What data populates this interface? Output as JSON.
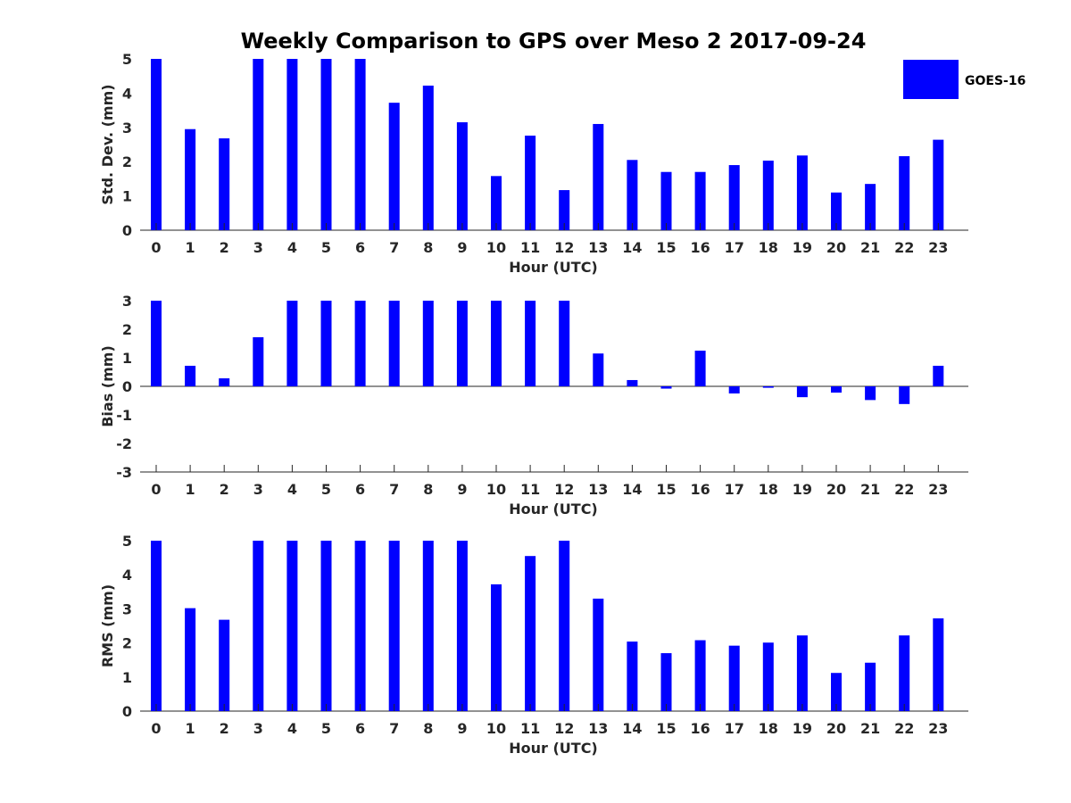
{
  "title": "Weekly Comparison to GPS over Meso 2 2017-09-24",
  "legend": {
    "label": "GOES-16",
    "color": "#0000ff"
  },
  "bar_color": "#0000ff",
  "chart_data": [
    {
      "type": "bar",
      "xlabel": "Hour (UTC)",
      "ylabel": "Std. Dev. (mm)",
      "ylim": [
        0,
        5
      ],
      "yticks": [
        0,
        1,
        2,
        3,
        4,
        5
      ],
      "categories": [
        "0",
        "1",
        "2",
        "3",
        "4",
        "5",
        "6",
        "7",
        "8",
        "9",
        "10",
        "11",
        "12",
        "13",
        "14",
        "15",
        "16",
        "17",
        "18",
        "19",
        "20",
        "21",
        "22",
        "23"
      ],
      "values": [
        5,
        2.95,
        2.68,
        5,
        5,
        5,
        5,
        3.72,
        4.22,
        3.15,
        1.58,
        2.76,
        1.17,
        3.1,
        2.05,
        1.7,
        1.7,
        1.9,
        2.03,
        2.18,
        1.1,
        1.35,
        2.16,
        2.64
      ]
    },
    {
      "type": "bar",
      "xlabel": "Hour (UTC)",
      "ylabel": "Bias (mm)",
      "ylim": [
        -3,
        3
      ],
      "yticks": [
        -3,
        -2,
        -1,
        0,
        1,
        2,
        3
      ],
      "categories": [
        "0",
        "1",
        "2",
        "3",
        "4",
        "5",
        "6",
        "7",
        "8",
        "9",
        "10",
        "11",
        "12",
        "13",
        "14",
        "15",
        "16",
        "17",
        "18",
        "19",
        "20",
        "21",
        "22",
        "23"
      ],
      "values": [
        3,
        0.72,
        0.28,
        1.72,
        3,
        3,
        3,
        3,
        3,
        3,
        3,
        3,
        3,
        1.15,
        0.22,
        -0.08,
        1.25,
        -0.25,
        -0.05,
        -0.38,
        -0.22,
        -0.48,
        -0.62,
        0.72
      ]
    },
    {
      "type": "bar",
      "xlabel": "Hour (UTC)",
      "ylabel": "RMS (mm)",
      "ylim": [
        0,
        5
      ],
      "yticks": [
        0,
        1,
        2,
        3,
        4,
        5
      ],
      "categories": [
        "0",
        "1",
        "2",
        "3",
        "4",
        "5",
        "6",
        "7",
        "8",
        "9",
        "10",
        "11",
        "12",
        "13",
        "14",
        "15",
        "16",
        "17",
        "18",
        "19",
        "20",
        "21",
        "22",
        "23"
      ],
      "values": [
        5,
        3.02,
        2.68,
        5,
        5,
        5,
        5,
        5,
        5,
        5,
        3.72,
        4.55,
        5,
        3.3,
        2.04,
        1.7,
        2.08,
        1.92,
        2.01,
        2.22,
        1.12,
        1.42,
        2.22,
        2.72
      ]
    }
  ]
}
